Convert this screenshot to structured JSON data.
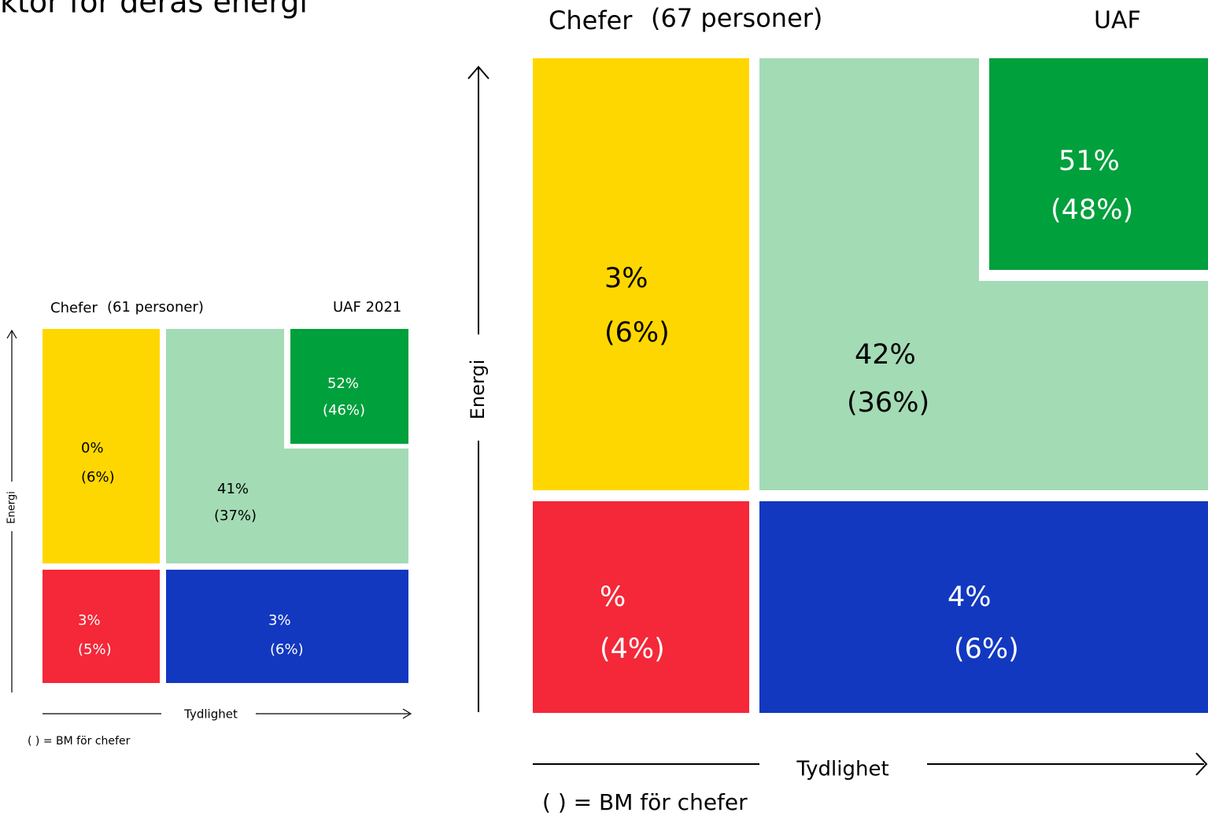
{
  "header": {
    "title": "ktor för deras energi"
  },
  "diagrams": [
    {
      "title": "Chefer",
      "count": "(61 personer)",
      "label": "UAF 2021",
      "y_axis": "Energi",
      "x_axis": "Tydlighet",
      "note": "( ) = BM för chefer",
      "cells": [
        {
          "value": "0%",
          "benchmark": "(6%)"
        },
        {
          "value": "41%",
          "benchmark": "(37%)"
        },
        {
          "value": "52%",
          "benchmark": "(46%)"
        },
        {
          "value": "3%",
          "benchmark": "(5%)"
        },
        {
          "value": "3%",
          "benchmark": "(6%)"
        }
      ]
    },
    {
      "title": "Chefer",
      "count": "(67 personer)",
      "label": "UAF",
      "y_axis": "Energi",
      "x_axis": "Tydlighet",
      "note": "( ) = BM för chefer",
      "cells": [
        {
          "value": "3%",
          "benchmark": "(6%)"
        },
        {
          "value": "42%",
          "benchmark": "(36%)"
        },
        {
          "value": "51%",
          "benchmark": "(48%)"
        },
        {
          "value": "%",
          "benchmark": "(4%)"
        },
        {
          "value": "4%",
          "benchmark": "(6%)"
        }
      ]
    }
  ]
}
